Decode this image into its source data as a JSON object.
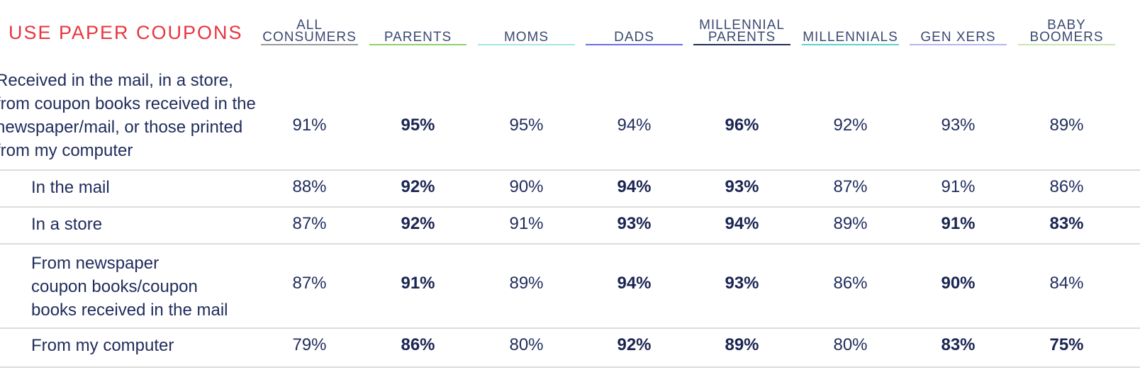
{
  "title": "USE PAPER COUPONS",
  "chart_data": {
    "type": "table",
    "title": "USE PAPER COUPONS",
    "columns": [
      {
        "label": "ALL\nCONSUMERS",
        "color": "#9a9a9a"
      },
      {
        "label": "PARENTS",
        "color": "#8dd16a"
      },
      {
        "label": "MOMS",
        "color": "#a8e3e3"
      },
      {
        "label": "DADS",
        "color": "#6a6ee0"
      },
      {
        "label": "MILLENNIAL\nPARENTS",
        "color": "#1f2c5c"
      },
      {
        "label": "MILLENNIALS",
        "color": "#5ecfd2"
      },
      {
        "label": "GEN XERS",
        "color": "#b7b4f0"
      },
      {
        "label": "BABY\nBOOMERS",
        "color": "#c8e7b0"
      }
    ],
    "rows": [
      {
        "label": "Received in the mail, in a store,\nfrom coupon books received in the\nnewspaper/mail, or those printed\nfrom my computer",
        "values": [
          "91%",
          "95%",
          "95%",
          "94%",
          "96%",
          "92%",
          "93%",
          "89%"
        ],
        "bold": [
          false,
          true,
          false,
          false,
          true,
          false,
          false,
          false
        ]
      },
      {
        "label": "In the mail",
        "values": [
          "88%",
          "92%",
          "90%",
          "94%",
          "93%",
          "87%",
          "91%",
          "86%"
        ],
        "bold": [
          false,
          true,
          false,
          true,
          true,
          false,
          false,
          false
        ]
      },
      {
        "label": "In a store",
        "values": [
          "87%",
          "92%",
          "91%",
          "93%",
          "94%",
          "89%",
          "91%",
          "83%"
        ],
        "bold": [
          false,
          true,
          false,
          true,
          true,
          false,
          true,
          true
        ]
      },
      {
        "label": "From newspaper\ncoupon books/coupon\nbooks received in the mail",
        "values": [
          "87%",
          "91%",
          "89%",
          "94%",
          "93%",
          "86%",
          "90%",
          "84%"
        ],
        "bold": [
          false,
          true,
          false,
          true,
          true,
          false,
          true,
          false
        ]
      },
      {
        "label": "From my computer",
        "values": [
          "79%",
          "86%",
          "80%",
          "92%",
          "89%",
          "80%",
          "83%",
          "75%"
        ],
        "bold": [
          false,
          true,
          false,
          true,
          true,
          false,
          true,
          true
        ]
      }
    ]
  }
}
